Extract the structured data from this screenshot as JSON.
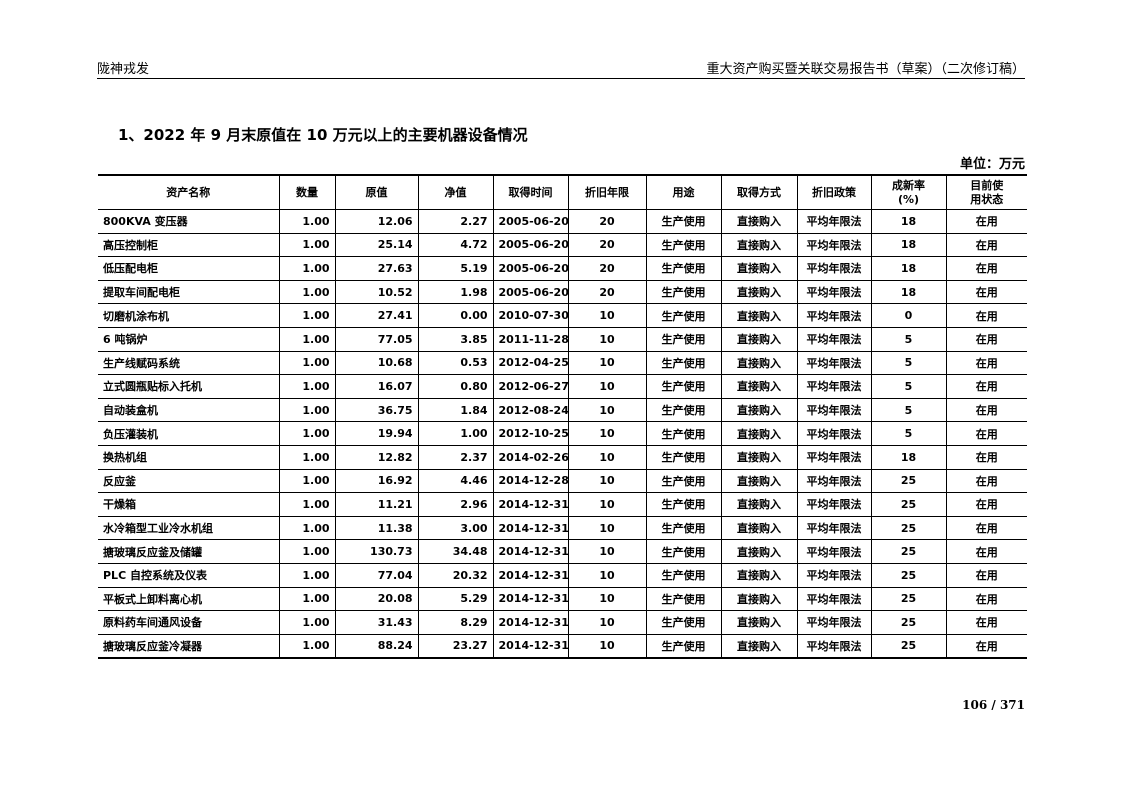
{
  "header": {
    "company": "陇神戎发",
    "doc_title": "重大资产购买暨关联交易报告书（草案）（二次修订稿）"
  },
  "section_title": "1、2022 年 9 月末原值在 10 万元以上的主要机器设备情况",
  "unit": "单位：万元",
  "table": {
    "columns": [
      "资产名称",
      "数量",
      "原值",
      "净值",
      "取得时间",
      "折旧年限",
      "用途",
      "取得方式",
      "折旧政策",
      "成新率\n(%)",
      "目前使\n用状态"
    ],
    "rows": [
      [
        "800KVA 变压器",
        "1.00",
        "12.06",
        "2.27",
        "2005-06-20",
        "20",
        "生产使用",
        "直接购入",
        "平均年限法",
        "18",
        "在用"
      ],
      [
        "高压控制柜",
        "1.00",
        "25.14",
        "4.72",
        "2005-06-20",
        "20",
        "生产使用",
        "直接购入",
        "平均年限法",
        "18",
        "在用"
      ],
      [
        "低压配电柜",
        "1.00",
        "27.63",
        "5.19",
        "2005-06-20",
        "20",
        "生产使用",
        "直接购入",
        "平均年限法",
        "18",
        "在用"
      ],
      [
        "提取车间配电柜",
        "1.00",
        "10.52",
        "1.98",
        "2005-06-20",
        "20",
        "生产使用",
        "直接购入",
        "平均年限法",
        "18",
        "在用"
      ],
      [
        "切磨机涂布机",
        "1.00",
        "27.41",
        "0.00",
        "2010-07-30",
        "10",
        "生产使用",
        "直接购入",
        "平均年限法",
        "0",
        "在用"
      ],
      [
        "6 吨锅炉",
        "1.00",
        "77.05",
        "3.85",
        "2011-11-28",
        "10",
        "生产使用",
        "直接购入",
        "平均年限法",
        "5",
        "在用"
      ],
      [
        "生产线赋码系统",
        "1.00",
        "10.68",
        "0.53",
        "2012-04-25",
        "10",
        "生产使用",
        "直接购入",
        "平均年限法",
        "5",
        "在用"
      ],
      [
        "立式圆瓶贴标入托机",
        "1.00",
        "16.07",
        "0.80",
        "2012-06-27",
        "10",
        "生产使用",
        "直接购入",
        "平均年限法",
        "5",
        "在用"
      ],
      [
        "自动装盒机",
        "1.00",
        "36.75",
        "1.84",
        "2012-08-24",
        "10",
        "生产使用",
        "直接购入",
        "平均年限法",
        "5",
        "在用"
      ],
      [
        "负压灌装机",
        "1.00",
        "19.94",
        "1.00",
        "2012-10-25",
        "10",
        "生产使用",
        "直接购入",
        "平均年限法",
        "5",
        "在用"
      ],
      [
        "换热机组",
        "1.00",
        "12.82",
        "2.37",
        "2014-02-26",
        "10",
        "生产使用",
        "直接购入",
        "平均年限法",
        "18",
        "在用"
      ],
      [
        "反应釜",
        "1.00",
        "16.92",
        "4.46",
        "2014-12-28",
        "10",
        "生产使用",
        "直接购入",
        "平均年限法",
        "25",
        "在用"
      ],
      [
        "干燥箱",
        "1.00",
        "11.21",
        "2.96",
        "2014-12-31",
        "10",
        "生产使用",
        "直接购入",
        "平均年限法",
        "25",
        "在用"
      ],
      [
        "水冷箱型工业冷水机组",
        "1.00",
        "11.38",
        "3.00",
        "2014-12-31",
        "10",
        "生产使用",
        "直接购入",
        "平均年限法",
        "25",
        "在用"
      ],
      [
        "搪玻璃反应釜及储罐",
        "1.00",
        "130.73",
        "34.48",
        "2014-12-31",
        "10",
        "生产使用",
        "直接购入",
        "平均年限法",
        "25",
        "在用"
      ],
      [
        "PLC 自控系统及仪表",
        "1.00",
        "77.04",
        "20.32",
        "2014-12-31",
        "10",
        "生产使用",
        "直接购入",
        "平均年限法",
        "25",
        "在用"
      ],
      [
        "平板式上卸料离心机",
        "1.00",
        "20.08",
        "5.29",
        "2014-12-31",
        "10",
        "生产使用",
        "直接购入",
        "平均年限法",
        "25",
        "在用"
      ],
      [
        "原料药车间通风设备",
        "1.00",
        "31.43",
        "8.29",
        "2014-12-31",
        "10",
        "生产使用",
        "直接购入",
        "平均年限法",
        "25",
        "在用"
      ],
      [
        "搪玻璃反应釜冷凝器",
        "1.00",
        "88.24",
        "23.27",
        "2014-12-31",
        "10",
        "生产使用",
        "直接购入",
        "平均年限法",
        "25",
        "在用"
      ]
    ]
  },
  "page_number": "106 / 371"
}
